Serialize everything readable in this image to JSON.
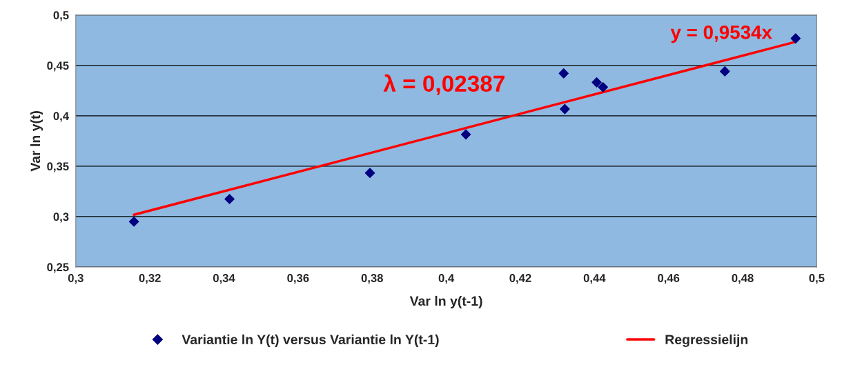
{
  "chart_data": {
    "type": "scatter",
    "xlabel": "Var ln y(t-1)",
    "ylabel": "Var ln y(t)",
    "series": [
      {
        "name": "Variantie ln Y(t) versus Variantie ln Y(t-1)",
        "color": "#000080",
        "marker": "diamond",
        "x": [
          0.3157,
          0.3415,
          0.3794,
          0.4053,
          0.4317,
          0.432,
          0.4406,
          0.4423,
          0.4752,
          0.4943
        ],
        "values": [
          0.295,
          0.3174,
          0.3433,
          0.3815,
          0.4421,
          0.4067,
          0.4332,
          0.4285,
          0.4441,
          0.4768
        ]
      },
      {
        "name": "Regressielijn",
        "type": "line",
        "color": "#ff0000",
        "marker": "none",
        "line_style": "solid",
        "x": [
          0.3157,
          0.4943
        ],
        "values": [
          0.3018,
          0.4734
        ]
      }
    ],
    "annotations": [
      "y = 0,9534x",
      "λ = 0,02387"
    ],
    "xlim": [
      0.3,
      0.5
    ],
    "ylim": [
      0.25,
      0.5
    ],
    "xticks": [
      {
        "value": 0.3,
        "label": "0,3"
      },
      {
        "value": 0.32,
        "label": "0,32"
      },
      {
        "value": 0.34,
        "label": "0,34"
      },
      {
        "value": 0.36,
        "label": "0,36"
      },
      {
        "value": 0.38,
        "label": "0,38"
      },
      {
        "value": 0.4,
        "label": "0,4"
      },
      {
        "value": 0.42,
        "label": "0,42"
      },
      {
        "value": 0.44,
        "label": "0,44"
      },
      {
        "value": 0.46,
        "label": "0,46"
      },
      {
        "value": 0.48,
        "label": "0,48"
      },
      {
        "value": 0.5,
        "label": "0,5"
      }
    ],
    "yticks": [
      {
        "value": 0.25,
        "label": "0,25"
      },
      {
        "value": 0.3,
        "label": "0,3"
      },
      {
        "value": 0.35,
        "label": "0,35"
      },
      {
        "value": 0.4,
        "label": "0,4"
      },
      {
        "value": 0.45,
        "label": "0,45"
      },
      {
        "value": 0.5,
        "label": "0,5"
      }
    ],
    "grid": "y",
    "legend": "bottom"
  }
}
